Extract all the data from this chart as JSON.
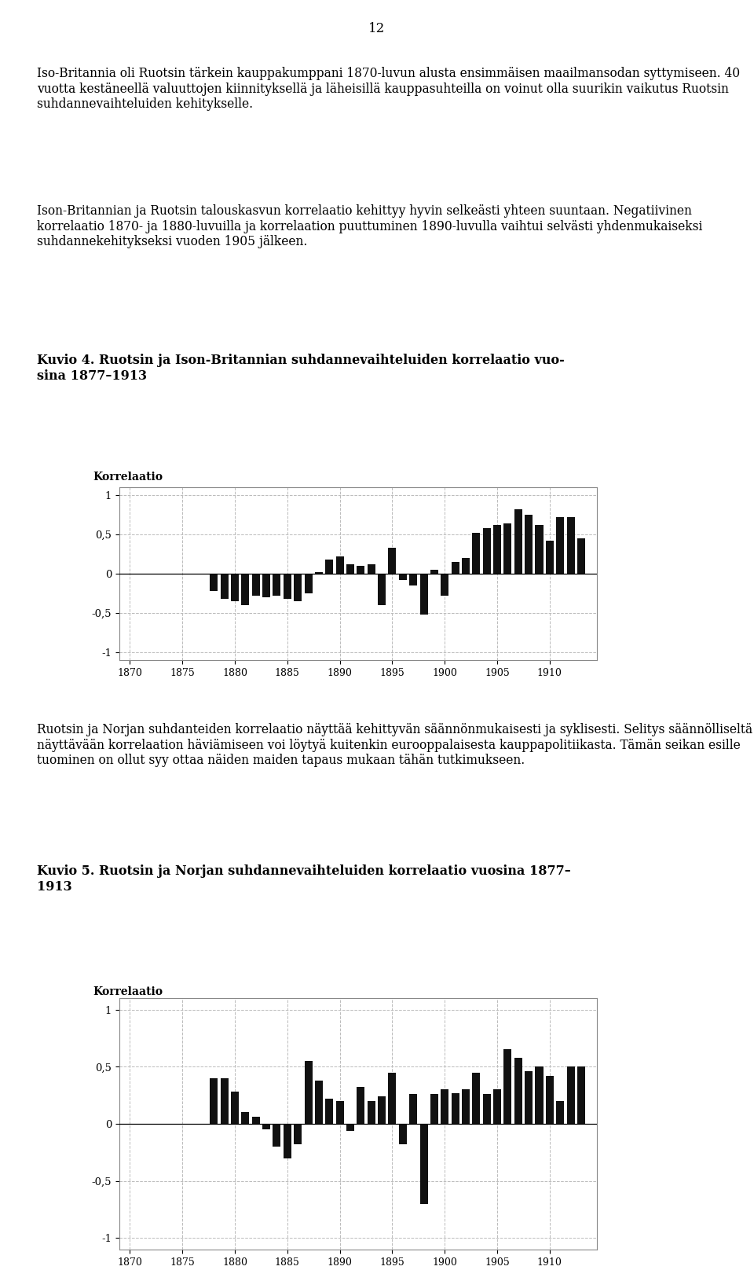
{
  "page_number": "12",
  "para1": "Iso-Britannia oli Ruotsin tärkein kauppakumppani 1870-luvun alusta ensimmäisen maailmansodan syttymiseen. 40 vuotta kestäneellä valuuttojen kiinnityksellä ja läheisillä kauppasuhteilla on voinut olla suurikin vaikutus Ruotsin suhdannevaihteluiden kehitykselle.",
  "para2": "Ison-Britannian ja Ruotsin talouskasvun korrelaatio kehittyy hyvin selkeästi yhteen suuntaan. Negatiivinen korrelaatio 1870- ja 1880-luvuilla ja korrelaation puuttuminen 1890-luvulla vaihtui selvästi yhdenmukaiseksi suhdannekehitykseksi vuoden 1905 jälkeen.",
  "fig4_title": "Kuvio 4. Ruotsin ja Ison-Britannian suhdannevaihteluiden korrelaatio vuo-\nsina 1877–1913",
  "fig4_ylabel": "Korrelaatio",
  "fig4_years": [
    1877,
    1878,
    1879,
    1880,
    1881,
    1882,
    1883,
    1884,
    1885,
    1886,
    1887,
    1888,
    1889,
    1890,
    1891,
    1892,
    1893,
    1894,
    1895,
    1896,
    1897,
    1898,
    1899,
    1900,
    1901,
    1902,
    1903,
    1904,
    1905,
    1906,
    1907,
    1908,
    1909,
    1910,
    1911,
    1912,
    1913
  ],
  "fig4_values": [
    0.0,
    -0.22,
    -0.32,
    -0.35,
    -0.4,
    -0.28,
    -0.3,
    -0.28,
    -0.32,
    -0.35,
    -0.25,
    0.02,
    0.18,
    0.22,
    0.12,
    0.1,
    0.12,
    -0.4,
    0.33,
    -0.08,
    -0.15,
    -0.52,
    0.05,
    -0.28,
    0.15,
    0.2,
    0.52,
    0.58,
    0.62,
    0.64,
    0.82,
    0.75,
    0.62,
    0.42,
    0.72,
    0.72,
    0.45
  ],
  "para3": "Ruotsin ja Norjan suhdanteiden korrelaatio näyttää kehittyvän säännönmukaisesti ja syklisesti. Selitys säännölliseltä näyttävään korrelaation häviämiseen voi löytyä kuitenkin eurooppalaisesta kauppapolitiikasta. Tämän seikan esille tuominen on ollut syy ottaa näiden maiden tapaus mukaan tähän tutkimukseen.",
  "fig5_title": "Kuvio 5. Ruotsin ja Norjan suhdannevaihteluiden korrelaatio vuosina 1877–\n1913",
  "fig5_ylabel": "Korrelaatio",
  "fig5_years": [
    1877,
    1878,
    1879,
    1880,
    1881,
    1882,
    1883,
    1884,
    1885,
    1886,
    1887,
    1888,
    1889,
    1890,
    1891,
    1892,
    1893,
    1894,
    1895,
    1896,
    1897,
    1898,
    1899,
    1900,
    1901,
    1902,
    1903,
    1904,
    1905,
    1906,
    1907,
    1908,
    1909,
    1910,
    1911,
    1912,
    1913
  ],
  "fig5_values": [
    0.0,
    0.4,
    0.4,
    0.28,
    0.1,
    0.06,
    -0.05,
    -0.2,
    -0.3,
    -0.18,
    0.55,
    0.38,
    0.22,
    0.2,
    -0.06,
    0.32,
    0.2,
    0.24,
    0.45,
    -0.18,
    0.26,
    -0.7,
    0.26,
    0.3,
    0.27,
    0.3,
    0.45,
    0.26,
    0.3,
    0.65,
    0.58,
    0.46,
    0.5,
    0.42,
    0.2,
    0.5,
    0.5
  ],
  "yticks": [
    -1,
    -0.5,
    0,
    0.5,
    1
  ],
  "ytick_labels": [
    "-1",
    "-0,5",
    "0",
    "0,5",
    "1"
  ],
  "xticks": [
    1870,
    1875,
    1880,
    1885,
    1890,
    1895,
    1900,
    1905,
    1910
  ],
  "xlim": [
    1869.0,
    1914.5
  ],
  "ylim": [
    -1.1,
    1.1
  ],
  "bar_color": "#111111",
  "bg_color": "#ffffff",
  "grid_color": "#bbbbbb"
}
